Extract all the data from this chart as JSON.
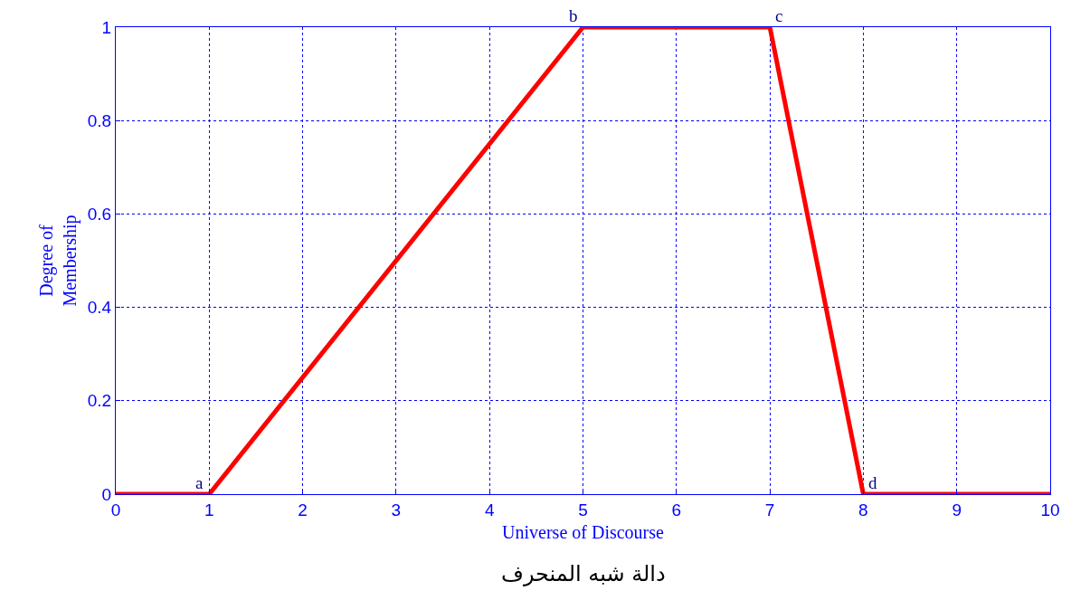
{
  "chart_data": {
    "type": "line",
    "xlabel": "Universe of Discourse",
    "ylabel": "Degree of\nMembership",
    "x": [
      0,
      1,
      5,
      7,
      8,
      10
    ],
    "series": [
      {
        "color": "#ff0000",
        "values": [
          0,
          0,
          1,
          1,
          0,
          0
        ]
      }
    ],
    "xlim": [
      0,
      10
    ],
    "xticks": [
      0,
      1,
      2,
      3,
      4,
      5,
      6,
      7,
      8,
      9,
      10
    ],
    "ylim": [
      0,
      1
    ],
    "yticks": [
      0,
      0.2,
      0.4,
      0.6,
      0.8,
      1
    ],
    "grid": true,
    "marker": "none",
    "line_style": "solid",
    "annotations": [
      {
        "text": "a",
        "x": 1,
        "y": 0
      },
      {
        "text": "b",
        "x": 5,
        "y": 1
      },
      {
        "text": "c",
        "x": 7,
        "y": 1
      },
      {
        "text": "d",
        "x": 8,
        "y": 0
      },
      "دالة شبه المنحرف"
    ]
  }
}
